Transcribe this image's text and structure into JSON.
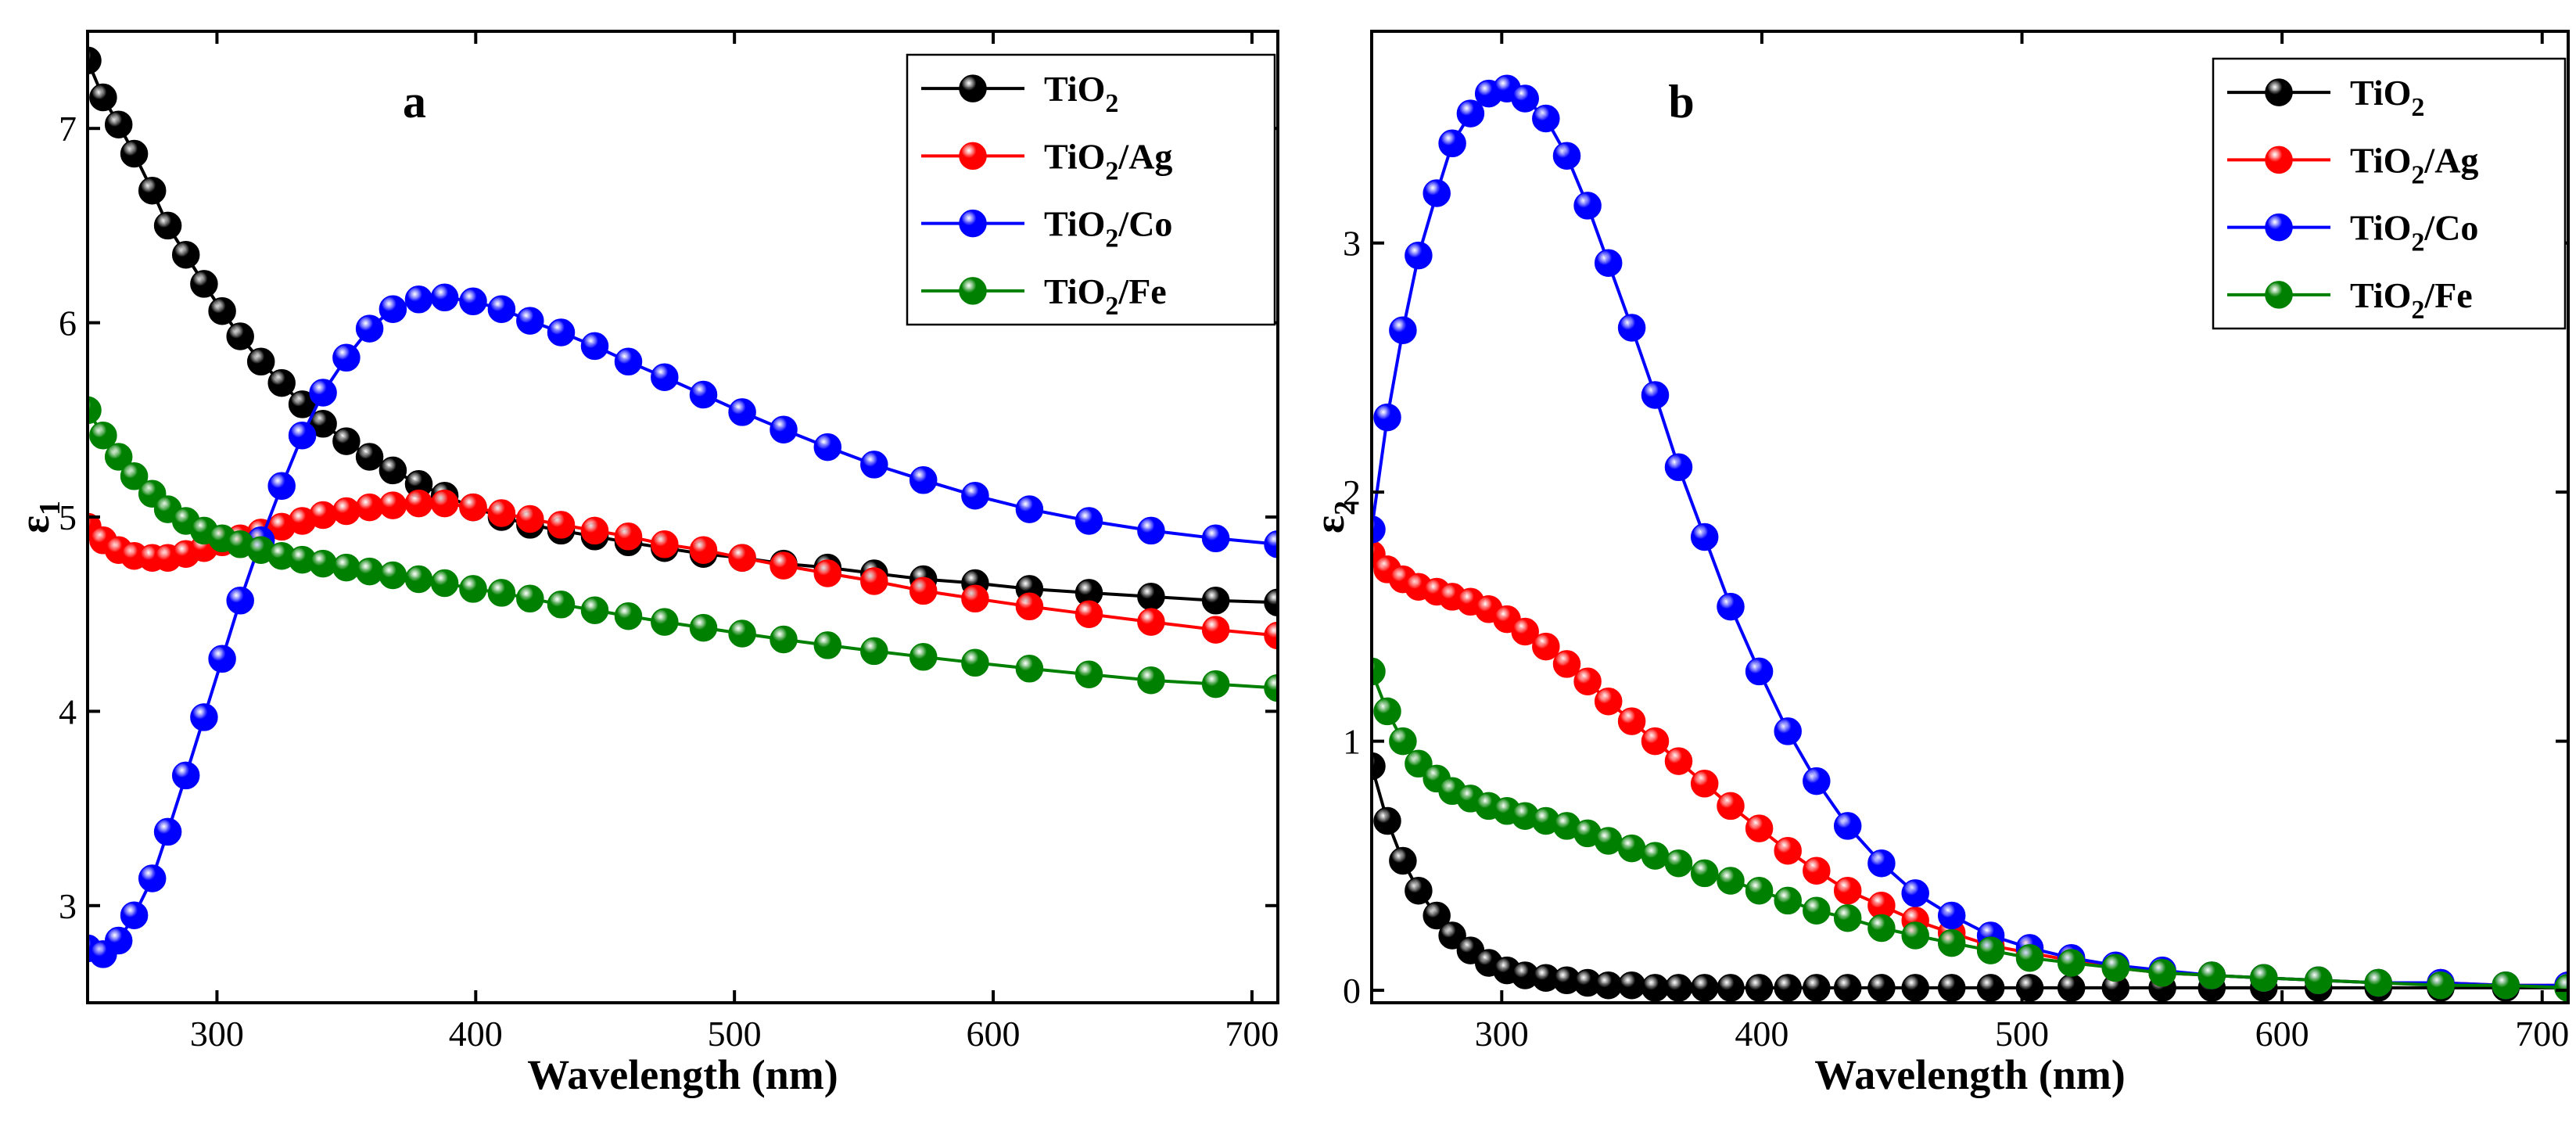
{
  "colors": {
    "TiO2": "#000000",
    "TiO2/Ag": "#ff0000",
    "TiO2/Co": "#0000ff",
    "TiO2/Fe": "#008000",
    "axis": "#000000",
    "background": "#ffffff"
  },
  "chart_data": [
    {
      "type": "line",
      "panel_label": "a",
      "title": "",
      "xlabel": "Wavelength (nm)",
      "ylabel_symbol": "ε",
      "ylabel_subscript": "1",
      "xlim": [
        250,
        710
      ],
      "ylim": [
        2.5,
        7.5
      ],
      "xticks": [
        300,
        400,
        500,
        600,
        700
      ],
      "yticks": [
        3,
        4,
        5,
        6,
        7
      ],
      "marker": "sphere",
      "legend_position": "top-right",
      "legend": [
        {
          "name": "TiO2",
          "main": "TiO",
          "sub": "2",
          "tail": ""
        },
        {
          "name": "TiO2/Ag",
          "main": "TiO",
          "sub": "2",
          "tail": "/Ag"
        },
        {
          "name": "TiO2/Co",
          "main": "TiO",
          "sub": "2",
          "tail": "/Co"
        },
        {
          "name": "TiO2/Fe",
          "main": "TiO",
          "sub": "2",
          "tail": "/Fe"
        }
      ],
      "x": [
        250,
        256,
        262,
        268,
        275,
        281,
        288,
        295,
        302,
        309,
        317,
        325,
        333,
        341,
        350,
        359,
        368,
        378,
        388,
        399,
        410,
        421,
        433,
        446,
        459,
        473,
        488,
        503,
        519,
        536,
        554,
        573,
        593,
        614,
        637,
        661,
        686,
        710
      ],
      "series": [
        {
          "name": "TiO2",
          "values": [
            7.35,
            7.16,
            7.02,
            6.87,
            6.68,
            6.5,
            6.35,
            6.2,
            6.06,
            5.93,
            5.8,
            5.69,
            5.58,
            5.48,
            5.39,
            5.31,
            5.24,
            5.17,
            5.11,
            5.05,
            5.0,
            4.96,
            4.93,
            4.9,
            4.87,
            4.84,
            4.81,
            4.79,
            4.76,
            4.74,
            4.71,
            4.68,
            4.66,
            4.63,
            4.61,
            4.59,
            4.57,
            4.56
          ]
        },
        {
          "name": "TiO2/Ag",
          "values": [
            4.95,
            4.88,
            4.83,
            4.8,
            4.79,
            4.79,
            4.81,
            4.84,
            4.87,
            4.89,
            4.92,
            4.95,
            4.98,
            5.01,
            5.03,
            5.05,
            5.06,
            5.07,
            5.07,
            5.05,
            5.02,
            4.99,
            4.96,
            4.93,
            4.9,
            4.86,
            4.83,
            4.79,
            4.75,
            4.71,
            4.67,
            4.62,
            4.58,
            4.54,
            4.5,
            4.46,
            4.42,
            4.39
          ]
        },
        {
          "name": "TiO2/Co",
          "values": [
            2.78,
            2.75,
            2.82,
            2.95,
            3.14,
            3.38,
            3.67,
            3.97,
            4.27,
            4.57,
            4.88,
            5.16,
            5.42,
            5.64,
            5.82,
            5.97,
            6.07,
            6.12,
            6.13,
            6.11,
            6.07,
            6.01,
            5.95,
            5.88,
            5.8,
            5.72,
            5.63,
            5.54,
            5.45,
            5.36,
            5.27,
            5.19,
            5.11,
            5.04,
            4.98,
            4.93,
            4.89,
            4.86
          ]
        },
        {
          "name": "TiO2/Fe",
          "values": [
            5.55,
            5.42,
            5.31,
            5.21,
            5.12,
            5.04,
            4.98,
            4.93,
            4.89,
            4.86,
            4.83,
            4.8,
            4.78,
            4.76,
            4.74,
            4.72,
            4.7,
            4.68,
            4.66,
            4.63,
            4.61,
            4.58,
            4.55,
            4.52,
            4.49,
            4.46,
            4.43,
            4.4,
            4.37,
            4.34,
            4.31,
            4.28,
            4.25,
            4.22,
            4.19,
            4.16,
            4.14,
            4.12
          ]
        }
      ]
    },
    {
      "type": "line",
      "panel_label": "b",
      "title": "",
      "xlabel": "Wavelength (nm)",
      "ylabel_symbol": "ε",
      "ylabel_subscript": "2",
      "xlim": [
        250,
        710
      ],
      "ylim": [
        -0.05,
        3.85
      ],
      "xticks": [
        300,
        400,
        500,
        600,
        700
      ],
      "yticks": [
        0,
        1,
        2,
        3
      ],
      "marker": "sphere",
      "legend_position": "top-right",
      "legend": [
        {
          "name": "TiO2",
          "main": "TiO",
          "sub": "2",
          "tail": ""
        },
        {
          "name": "TiO2/Ag",
          "main": "TiO",
          "sub": "2",
          "tail": "/Ag"
        },
        {
          "name": "TiO2/Co",
          "main": "TiO",
          "sub": "2",
          "tail": "/Co"
        },
        {
          "name": "TiO2/Fe",
          "main": "TiO",
          "sub": "2",
          "tail": "/Fe"
        }
      ],
      "x": [
        250,
        256,
        262,
        268,
        275,
        281,
        288,
        295,
        302,
        309,
        317,
        325,
        333,
        341,
        350,
        359,
        368,
        378,
        388,
        399,
        410,
        421,
        433,
        446,
        459,
        473,
        488,
        503,
        519,
        536,
        554,
        573,
        593,
        614,
        637,
        661,
        686,
        710
      ],
      "series": [
        {
          "name": "TiO2",
          "values": [
            0.9,
            0.68,
            0.52,
            0.4,
            0.3,
            0.22,
            0.16,
            0.11,
            0.08,
            0.06,
            0.05,
            0.04,
            0.03,
            0.02,
            0.02,
            0.01,
            0.01,
            0.01,
            0.01,
            0.01,
            0.01,
            0.01,
            0.01,
            0.01,
            0.01,
            0.01,
            0.01,
            0.01,
            0.01,
            0.01,
            0.01,
            0.01,
            0.01,
            0.01,
            0.01,
            0.01,
            0.01,
            0.01
          ]
        },
        {
          "name": "TiO2/Ag",
          "values": [
            1.75,
            1.69,
            1.65,
            1.62,
            1.6,
            1.58,
            1.56,
            1.53,
            1.49,
            1.44,
            1.38,
            1.31,
            1.24,
            1.16,
            1.08,
            1.0,
            0.92,
            0.83,
            0.74,
            0.65,
            0.56,
            0.48,
            0.4,
            0.34,
            0.28,
            0.23,
            0.18,
            0.15,
            0.12,
            0.09,
            0.07,
            0.06,
            0.05,
            0.04,
            0.03,
            0.03,
            0.02,
            0.02
          ]
        },
        {
          "name": "TiO2/Co",
          "values": [
            1.85,
            2.3,
            2.65,
            2.95,
            3.2,
            3.4,
            3.52,
            3.6,
            3.62,
            3.58,
            3.5,
            3.35,
            3.15,
            2.92,
            2.66,
            2.39,
            2.1,
            1.82,
            1.54,
            1.28,
            1.04,
            0.84,
            0.66,
            0.51,
            0.39,
            0.3,
            0.22,
            0.17,
            0.13,
            0.1,
            0.08,
            0.06,
            0.05,
            0.04,
            0.03,
            0.03,
            0.02,
            0.02
          ]
        },
        {
          "name": "TiO2/Fe",
          "values": [
            1.28,
            1.12,
            1.0,
            0.91,
            0.85,
            0.8,
            0.77,
            0.74,
            0.72,
            0.7,
            0.68,
            0.66,
            0.63,
            0.6,
            0.57,
            0.54,
            0.51,
            0.47,
            0.44,
            0.4,
            0.36,
            0.32,
            0.29,
            0.25,
            0.22,
            0.19,
            0.16,
            0.13,
            0.11,
            0.09,
            0.07,
            0.06,
            0.05,
            0.04,
            0.03,
            0.02,
            0.02,
            0.01
          ]
        }
      ]
    }
  ]
}
